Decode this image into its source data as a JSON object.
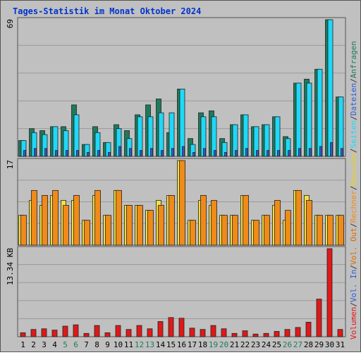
{
  "chart_data": {
    "type": "bar",
    "title": "Tages-Statistik im Monat Oktober 2024",
    "categories": [
      "1",
      "2",
      "3",
      "4",
      "5",
      "6",
      "7",
      "8",
      "9",
      "10",
      "11",
      "12",
      "13",
      "14",
      "15",
      "16",
      "17",
      "18",
      "19",
      "20",
      "21",
      "22",
      "23",
      "24",
      "25",
      "26",
      "27",
      "28",
      "29",
      "30",
      "31"
    ],
    "weekend_days": [
      "5",
      "6",
      "12",
      "13",
      "19",
      "20",
      "26",
      "27"
    ],
    "panels": [
      {
        "id": "top",
        "max_label": "69",
        "ylim": [
          0,
          69
        ],
        "series": [
          {
            "name": "Anfragen",
            "color": "#1f7a5c",
            "values": [
              8,
              14,
              13,
              15,
              15,
              26,
              6,
              15,
              7,
              16,
              13,
              21,
              26,
              29,
              12,
              34,
              9,
              22,
              23,
              9,
              16,
              21,
              15,
              16,
              20,
              10,
              37,
              39,
              44,
              69,
              30
            ]
          },
          {
            "name": "Seiten",
            "color": "#20d8f8",
            "values": [
              8,
              12,
              11,
              15,
              13,
              21,
              6,
              12,
              7,
              14,
              9,
              20,
              20,
              22,
              22,
              34,
              6,
              20,
              20,
              7,
              16,
              21,
              15,
              16,
              20,
              9,
              37,
              37,
              44,
              69,
              30
            ]
          },
          {
            "name": "Dateien",
            "color": "#2d5bd6",
            "values": [
              3,
              4,
              4,
              3,
              3,
              3,
              2,
              3,
              2,
              5,
              4,
              3,
              4,
              3,
              4,
              5,
              2,
              4,
              3,
              2,
              3,
              4,
              3,
              3,
              3,
              3,
              4,
              4,
              5,
              7,
              4
            ]
          }
        ]
      },
      {
        "id": "middle",
        "max_label": "17",
        "ylim": [
          0,
          17
        ],
        "series": [
          {
            "name": "Besuche",
            "color": "#f0e040",
            "values": [
              6,
              9,
              8,
              10,
              9,
              9,
              5,
              10,
              6,
              11,
              8,
              8,
              7,
              9,
              10,
              17,
              5,
              9,
              8,
              6,
              6,
              10,
              5,
              6,
              8,
              5,
              11,
              10,
              6,
              6,
              6
            ]
          },
          {
            "name": "Rechner",
            "color": "#f08a18",
            "values": [
              6,
              11,
              10,
              11,
              8,
              10,
              5,
              11,
              6,
              11,
              8,
              8,
              7,
              8,
              10,
              17,
              5,
              10,
              9,
              6,
              6,
              10,
              5,
              6,
              9,
              7,
              11,
              9,
              6,
              6,
              6
            ]
          }
        ]
      },
      {
        "id": "bottom",
        "max_label": "13.34 KB",
        "ylim": [
          0,
          13.34
        ],
        "series": [
          {
            "name": "Volumen",
            "color": "#e01818",
            "values": [
              0.6,
              1.1,
              1.2,
              1.0,
              1.6,
              1.8,
              0.5,
              1.7,
              0.6,
              1.7,
              1.1,
              1.7,
              1.2,
              2.3,
              2.9,
              2.8,
              1.3,
              1.1,
              1.7,
              1.2,
              0.5,
              0.9,
              0.4,
              0.5,
              0.8,
              1.1,
              1.4,
              2.2,
              5.7,
              13.34,
              1.1
            ]
          }
        ]
      }
    ],
    "legend_right": [
      {
        "label": "Anfragen",
        "color": "#1f7a5c"
      },
      {
        "label": "/",
        "color": "#333333"
      },
      {
        "label": "Dateien",
        "color": "#2d5bd6"
      },
      {
        "label": "/",
        "color": "#333333"
      },
      {
        "label": "Seiten",
        "color": "#20d8f8"
      },
      {
        "label": "/",
        "color": "#333333"
      },
      {
        "label": "Besuche",
        "color": "#e8d020"
      },
      {
        "label": "/",
        "color": "#333333"
      },
      {
        "label": "Rechner",
        "color": "#f08a18"
      },
      {
        "label": "/",
        "color": "#333333"
      },
      {
        "label": "Vol. Out",
        "color": "#dd6a00"
      },
      {
        "label": "/",
        "color": "#333333"
      },
      {
        "label": "Vol. In",
        "color": "#2d5bd6"
      },
      {
        "label": "/",
        "color": "#333333"
      },
      {
        "label": "Volumen",
        "color": "#e01818"
      }
    ],
    "colors": {
      "background": "#c0c0c0",
      "grid": "#9a9a9a",
      "title": "#0033cc",
      "weekday_label": "#000000",
      "weekend_label": "#1f7a5c"
    },
    "grid": true
  }
}
